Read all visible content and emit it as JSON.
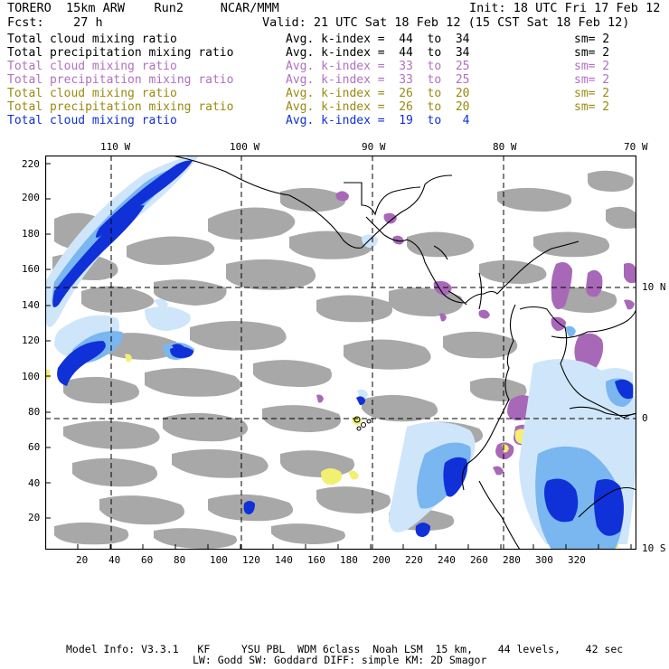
{
  "header": {
    "model": "TORERO  15km ARW    Run2     NCAR/MMM",
    "init": "Init: 18 UTC Fri 17 Feb 12",
    "fcst": "Fcst:    27 h",
    "valid": "Valid: 21 UTC Sat 18 Feb 12 (15 CST Sat 18 Feb 12)"
  },
  "legend": [
    {
      "field": "Total cloud mixing ratio",
      "index": "Avg. k-index =  44  to  34",
      "sm": "sm= 2",
      "color": "#000000"
    },
    {
      "field": "Total precipitation mixing ratio",
      "index": "Avg. k-index =  44  to  34",
      "sm": "sm= 2",
      "color": "#000000"
    },
    {
      "field": "Total cloud mixing ratio",
      "index": "Avg. k-index =  33  to  25",
      "sm": "sm= 2",
      "color": "#b070c0"
    },
    {
      "field": "Total precipitation mixing ratio",
      "index": "Avg. k-index =  33  to  25",
      "sm": "sm= 2",
      "color": "#b070c0"
    },
    {
      "field": "Total cloud mixing ratio",
      "index": "Avg. k-index =  26  to  20",
      "sm": "sm= 2",
      "color": "#9a8a10"
    },
    {
      "field": "Total precipitation mixing ratio",
      "index": "Avg. k-index =  26  to  20",
      "sm": "sm= 2",
      "color": "#9a8a10"
    },
    {
      "field": "Total cloud mixing ratio",
      "index": "Avg. k-index =  19  to   4",
      "sm": "",
      "color": "#1030d0"
    }
  ],
  "axes": {
    "lon_labels": [
      "110 W",
      "100 W",
      "90 W",
      "80 W",
      "70 W"
    ],
    "lat_labels": [
      "10 N",
      "0",
      "10 S"
    ],
    "x_ticks": [
      "20",
      "40",
      "60",
      "80",
      "100",
      "120",
      "140",
      "160",
      "180",
      "200",
      "220",
      "240",
      "260",
      "280",
      "300",
      "320"
    ],
    "y_ticks": [
      "220",
      "200",
      "180",
      "160",
      "140",
      "120",
      "100",
      "80",
      "60",
      "40",
      "20"
    ]
  },
  "footer": {
    "line1": "Model Info: V3.3.1   KF     YSU PBL  WDM 6class  Noah LSM  15 km,    44 levels,    42 sec",
    "line2": "LW: Godd SW: Goddard DIFF: simple KM: 2D Smagor"
  },
  "colors": {
    "gray_cloud": "#a8a8a8",
    "purple_cloud": "#a868b8",
    "yellow_cloud": "#f2f070",
    "blue_light": "#cfe6fa",
    "blue_mid": "#7ab6f0",
    "blue_dark": "#1030d8",
    "coast": "#000000",
    "grid": "#000000"
  }
}
